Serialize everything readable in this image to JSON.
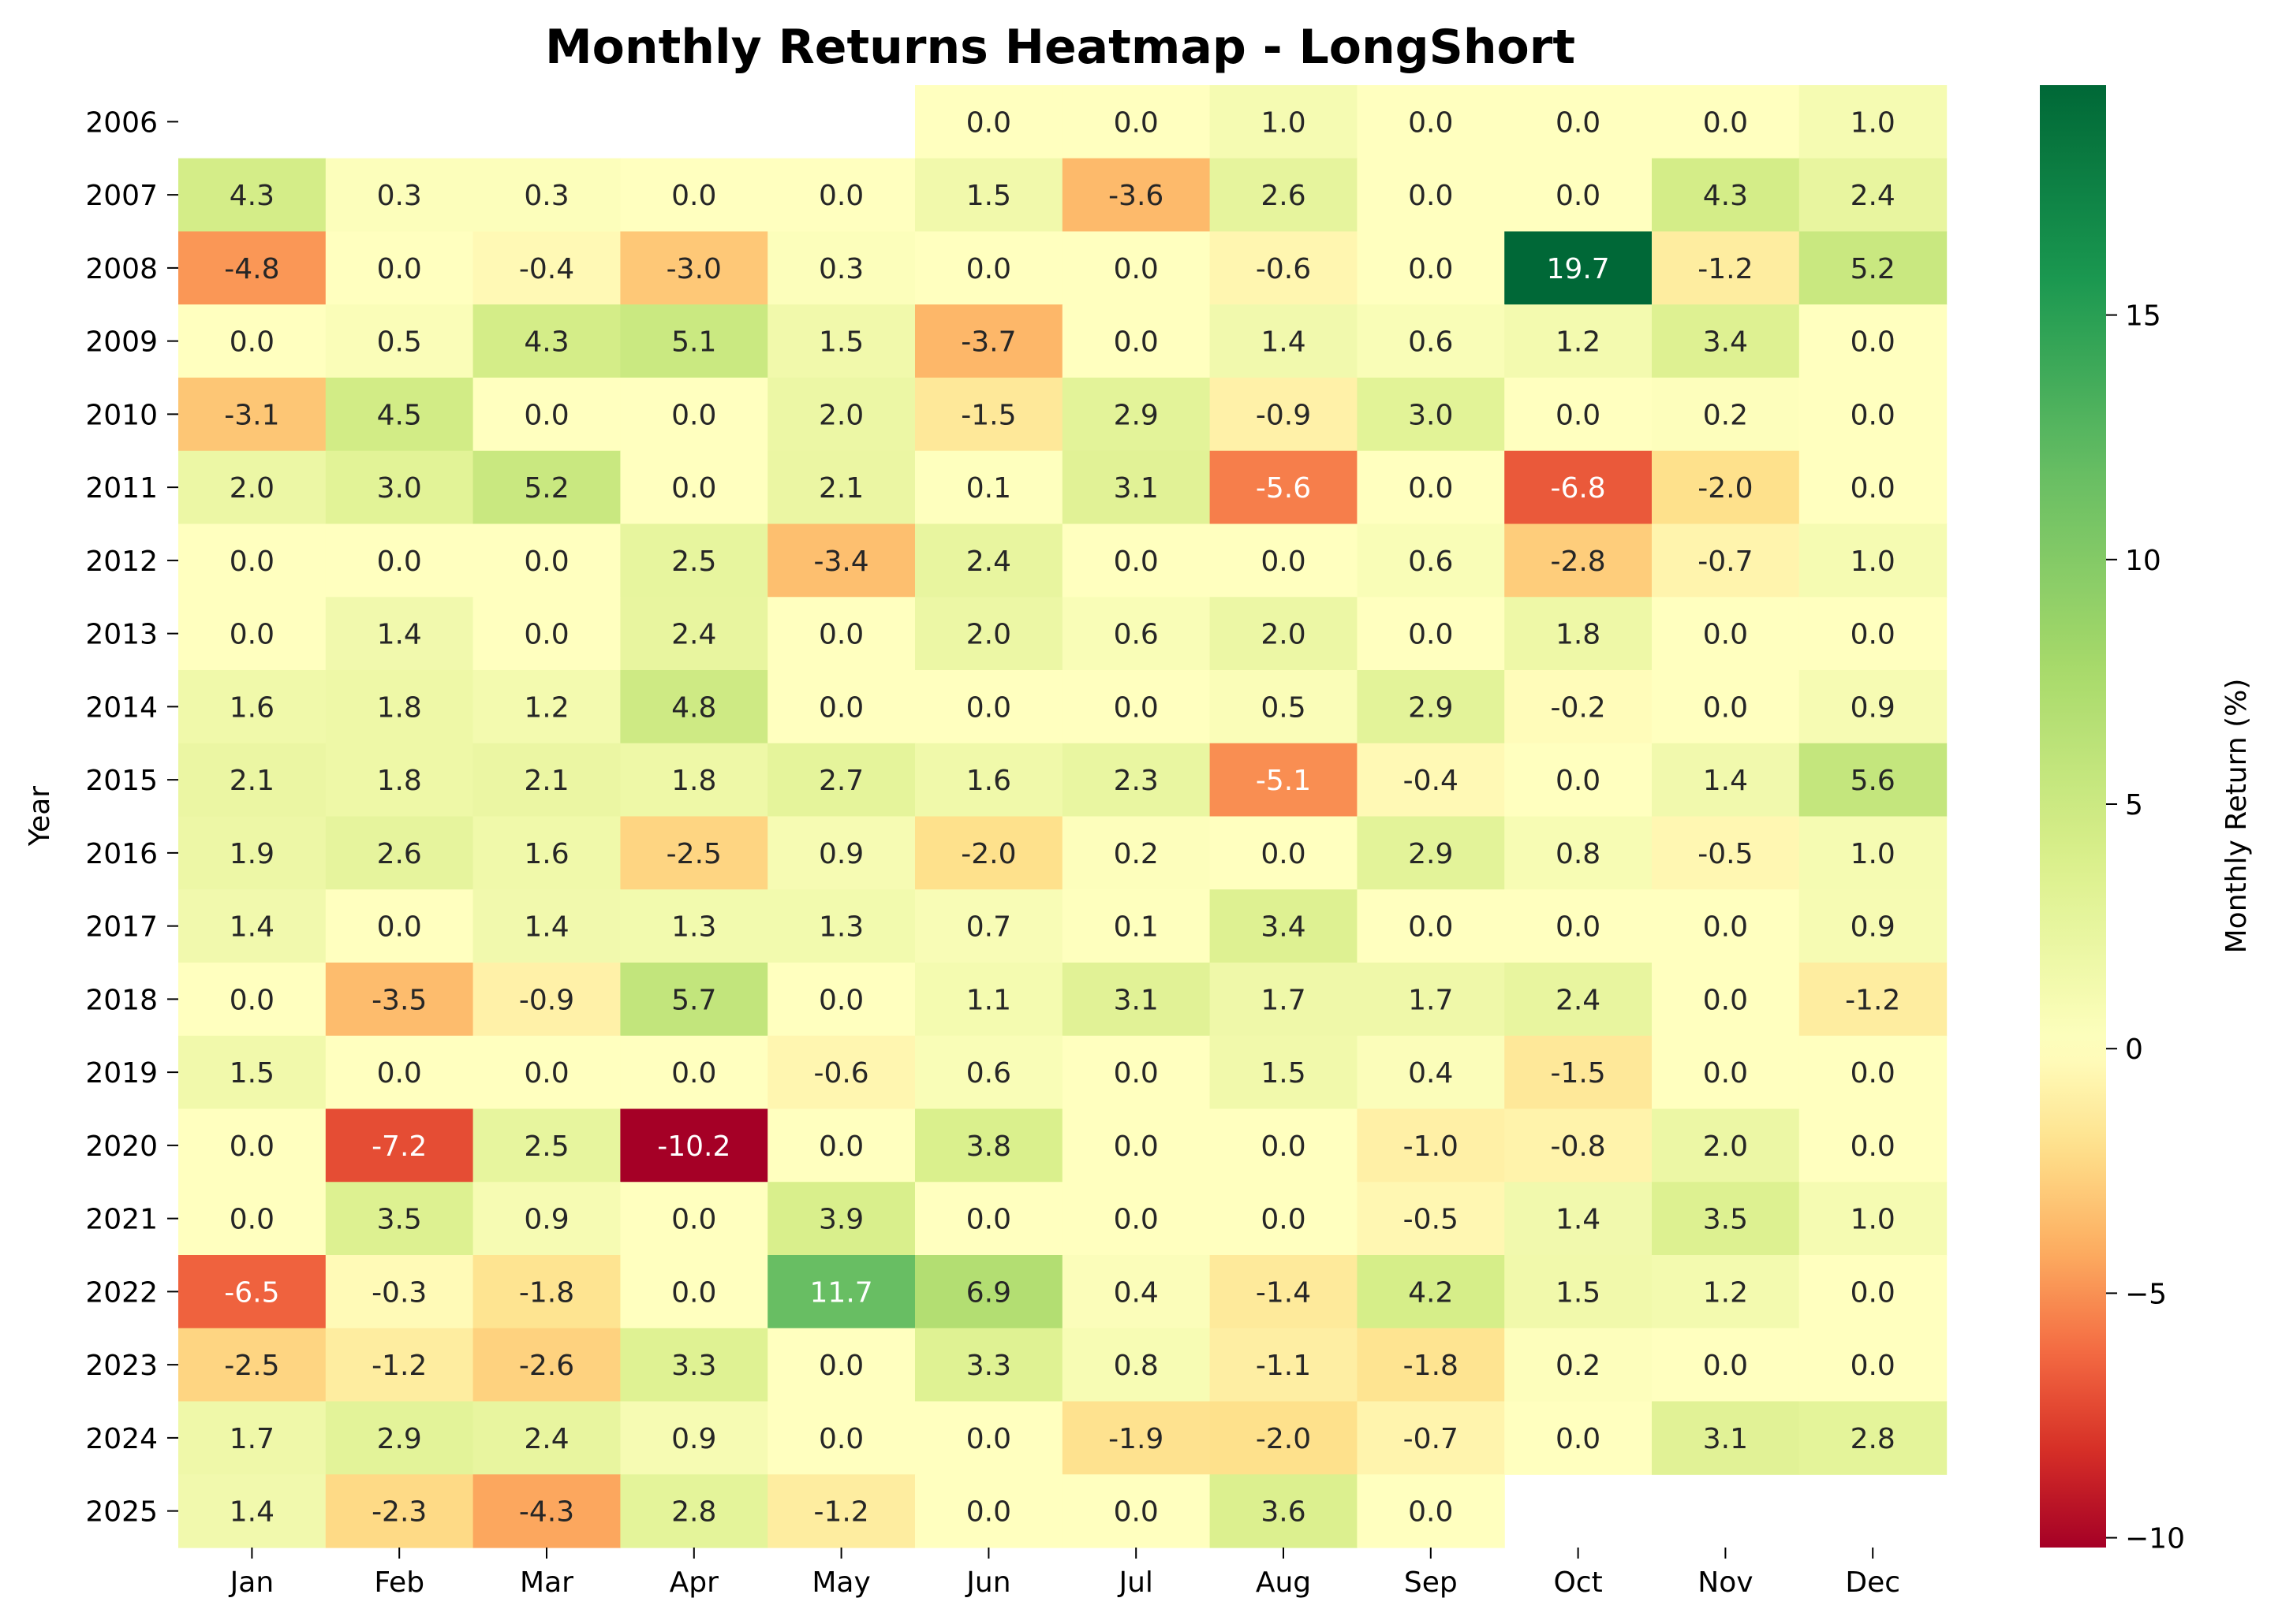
{
  "chart_data": {
    "type": "heatmap",
    "title": "Monthly Returns Heatmap - LongShort",
    "ylabel": "Year",
    "xlabel": "",
    "colorbar_label": "Monthly Return (%)",
    "colorbar_ticks": [
      "15",
      "10",
      "5",
      "0",
      "−5",
      "−10"
    ],
    "colorbar_tick_values": [
      15,
      10,
      5,
      0,
      -5,
      -10
    ],
    "color_range": [
      -10.2,
      19.7
    ],
    "colormap": [
      "#a50026",
      "#d73027",
      "#f46d43",
      "#fdae61",
      "#fee08b",
      "#ffffbf",
      "#d9ef8b",
      "#a6d96a",
      "#66bd63",
      "#1a9850",
      "#006837"
    ],
    "months": [
      "Jan",
      "Feb",
      "Mar",
      "Apr",
      "May",
      "Jun",
      "Jul",
      "Aug",
      "Sep",
      "Oct",
      "Nov",
      "Dec"
    ],
    "years": [
      "2006",
      "2007",
      "2008",
      "2009",
      "2010",
      "2011",
      "2012",
      "2013",
      "2014",
      "2015",
      "2016",
      "2017",
      "2018",
      "2019",
      "2020",
      "2021",
      "2022",
      "2023",
      "2024",
      "2025"
    ],
    "cells": [
      [
        null,
        null,
        null,
        null,
        null,
        "0.0",
        "0.0",
        "1.0",
        "0.0",
        "0.0",
        "0.0",
        "1.0"
      ],
      [
        "4.3",
        "0.3",
        "0.3",
        "0.0",
        "0.0",
        "1.5",
        "-3.6",
        "2.6",
        "0.0",
        "0.0",
        "4.3",
        "2.4"
      ],
      [
        "-4.8",
        "0.0",
        "-0.4",
        "-3.0",
        "0.3",
        "0.0",
        "0.0",
        "-0.6",
        "0.0",
        "19.7",
        "-1.2",
        "5.2"
      ],
      [
        "0.0",
        "0.5",
        "4.3",
        "5.1",
        "1.5",
        "-3.7",
        "0.0",
        "1.4",
        "0.6",
        "1.2",
        "3.4",
        "0.0"
      ],
      [
        "-3.1",
        "4.5",
        "0.0",
        "0.0",
        "2.0",
        "-1.5",
        "2.9",
        "-0.9",
        "3.0",
        "0.0",
        "0.2",
        "0.0"
      ],
      [
        "2.0",
        "3.0",
        "5.2",
        "0.0",
        "2.1",
        "0.1",
        "3.1",
        "-5.6",
        "0.0",
        "-6.8",
        "-2.0",
        "0.0"
      ],
      [
        "0.0",
        "0.0",
        "0.0",
        "2.5",
        "-3.4",
        "2.4",
        "0.0",
        "0.0",
        "0.6",
        "-2.8",
        "-0.7",
        "1.0"
      ],
      [
        "0.0",
        "1.4",
        "0.0",
        "2.4",
        "0.0",
        "2.0",
        "0.6",
        "2.0",
        "0.0",
        "1.8",
        "0.0",
        "0.0"
      ],
      [
        "1.6",
        "1.8",
        "1.2",
        "4.8",
        "0.0",
        "0.0",
        "0.0",
        "0.5",
        "2.9",
        "-0.2",
        "0.0",
        "0.9"
      ],
      [
        "2.1",
        "1.8",
        "2.1",
        "1.8",
        "2.7",
        "1.6",
        "2.3",
        "-5.1",
        "-0.4",
        "0.0",
        "1.4",
        "5.6"
      ],
      [
        "1.9",
        "2.6",
        "1.6",
        "-2.5",
        "0.9",
        "-2.0",
        "0.2",
        "0.0",
        "2.9",
        "0.8",
        "-0.5",
        "1.0"
      ],
      [
        "1.4",
        "0.0",
        "1.4",
        "1.3",
        "1.3",
        "0.7",
        "0.1",
        "3.4",
        "0.0",
        "0.0",
        "0.0",
        "0.9"
      ],
      [
        "0.0",
        "-3.5",
        "-0.9",
        "5.7",
        "0.0",
        "1.1",
        "3.1",
        "1.7",
        "1.7",
        "2.4",
        "0.0",
        "-1.2"
      ],
      [
        "1.5",
        "0.0",
        "0.0",
        "0.0",
        "-0.6",
        "0.6",
        "0.0",
        "1.5",
        "0.4",
        "-1.5",
        "0.0",
        "0.0"
      ],
      [
        "0.0",
        "-7.2",
        "2.5",
        "-10.2",
        "0.0",
        "3.8",
        "0.0",
        "0.0",
        "-1.0",
        "-0.8",
        "2.0",
        "0.0"
      ],
      [
        "0.0",
        "3.5",
        "0.9",
        "0.0",
        "3.9",
        "0.0",
        "0.0",
        "0.0",
        "-0.5",
        "1.4",
        "3.5",
        "1.0"
      ],
      [
        "-6.5",
        "-0.3",
        "-1.8",
        "0.0",
        "11.7",
        "6.9",
        "0.4",
        "-1.4",
        "4.2",
        "1.5",
        "1.2",
        "0.0"
      ],
      [
        "-2.5",
        "-1.2",
        "-2.6",
        "3.3",
        "0.0",
        "3.3",
        "0.8",
        "-1.1",
        "-1.8",
        "0.2",
        "0.0",
        "0.0"
      ],
      [
        "1.7",
        "2.9",
        "2.4",
        "0.9",
        "0.0",
        "0.0",
        "-1.9",
        "-2.0",
        "-0.7",
        "0.0",
        "3.1",
        "2.8"
      ],
      [
        "1.4",
        "-2.3",
        "-4.3",
        "2.8",
        "-1.2",
        "0.0",
        "0.0",
        "3.6",
        "0.0",
        null,
        null,
        null
      ]
    ]
  }
}
